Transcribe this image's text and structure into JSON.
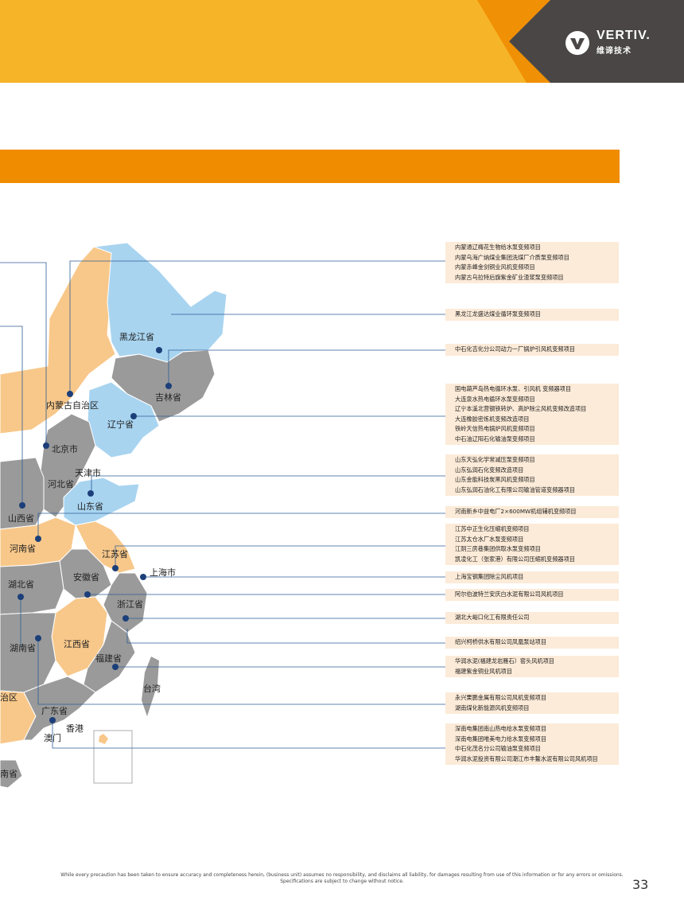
{
  "brand": {
    "name": "VERTIV.",
    "sub": "维谛技术"
  },
  "colors": {
    "header_yellow": "#f6b429",
    "header_orange": "#f08c00",
    "header_dark": "#4a4646",
    "section_bar": "#f08c00",
    "region_blue": "#a8d4f0",
    "region_tan": "#f8c88a",
    "region_gray": "#9a9a9a",
    "marker": "#1c3f7a"
  },
  "provinces": {
    "heilongjiang": "黑龙江省",
    "jilin": "吉林省",
    "liaoning": "辽宁省",
    "neimenggu": "内蒙古自治区",
    "beijing": "北京市",
    "tianjin": "天津市",
    "hebei": "河北省",
    "shanxi": "山西省",
    "shandong": "山东省",
    "henan": "河南省",
    "jiangsu": "江苏省",
    "shanghai": "上海市",
    "anhui": "安徽省",
    "hubei": "湖北省",
    "zhejiang": "浙江省",
    "hunan": "湖南省",
    "jiangxi": "江西省",
    "fujian": "福建省",
    "taiwan": "台湾",
    "guangxi_partial": "治区",
    "guangdong": "广东省",
    "hongkong": "香港",
    "macau": "澳门",
    "hainan_partial": "南省"
  },
  "callouts": [
    {
      "items": [
        "内蒙通辽梅花生物给水泵变频项目",
        "内蒙乌海广纳煤业集团洗煤厂介质泵变频项目",
        "内蒙赤峰金剑铜业风机变频项目",
        "内蒙古乌拉特后旗紫金矿业渣浆泵变频项目"
      ]
    },
    {
      "items": [
        "黑龙江龙盛达煤业循环泵变频项目"
      ]
    },
    {
      "items": [
        "中石化吉化分公司动力一厂锅炉引风机变频项目"
      ]
    },
    {
      "items": [
        "国电葫芦岛热电循环水泵、引风机 变频器项目",
        "大连泉水热电循环水泵变频项目",
        "辽宁本溪北营钢铁转炉、高炉除尘风机变频改造项目",
        "大连橡胶密炼机变频改造项目",
        "铁岭天信热电锅炉风机变频项目",
        "中石油辽阳石化输油泵变频项目"
      ]
    },
    {
      "items": [
        "山东天弘化学常减压泵变频项目",
        "山东弘润石化变频改造项目",
        "山东金能科技炭黑风机变频项目",
        "山东弘润石油化工有限公司输油管道变频器项目"
      ]
    },
    {
      "items": [
        "河南新乡中益电厂2×600MW机组辅机变频项目"
      ]
    },
    {
      "items": [
        "江苏中正生化压缩机变频项目",
        "江苏太仓水厂水泵变频项目",
        "江阴三房巷集团供取水泵变频项目",
        "凯凌化工（张家港）有限公司压缩机变频器项目"
      ]
    },
    {
      "items": [
        "上海宝钢集团除尘风机项目"
      ]
    },
    {
      "items": [
        "阿尔伯波特兰安庆白水泥有限公司风机项目"
      ]
    },
    {
      "items": [
        "湖北大峪口化工有限责任公司"
      ]
    },
    {
      "items": [
        "绍兴柯桥供水有限公司凤凰泵站项目"
      ]
    },
    {
      "items": [
        "华润水泥(福建龙岩雁石）窑头风机项目",
        "福建紫金铜业风机项目"
      ]
    },
    {
      "items": [
        "永兴栗鹏金属有限公司风机变频项目",
        "湖南煤化新能源风机变频项目"
      ]
    },
    {
      "items": [
        "深南电集团南山热电给水泵变频项目",
        "深南电集团唯美电力给水泵变频项目",
        "中石化茂名分公司输油泵变频项目",
        "华润水泥投资有限公司潮江市丰鳌水泥有限公司风机项目"
      ]
    }
  ],
  "footer": {
    "disclaimer_line1": "While every precaution has been taken to ensure accuracy and completeness herein, (business unit) assumes no responsibility, and disclaims all liability, for damages resulting from use of this information or for any errors or omissions.",
    "disclaimer_line2": "Specifications are subject to change without notice.",
    "page_number": "33"
  }
}
